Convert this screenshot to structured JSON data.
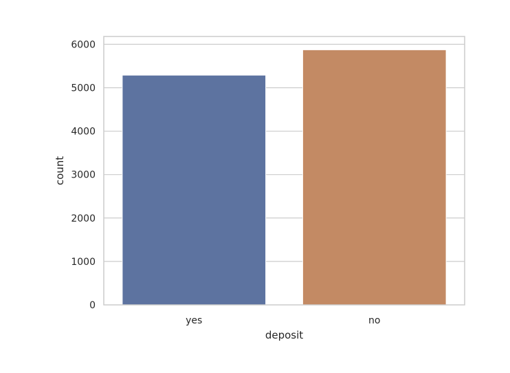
{
  "chart_data": {
    "type": "bar",
    "categories": [
      "yes",
      "no"
    ],
    "values": [
      5289,
      5873
    ],
    "title": "",
    "xlabel": "deposit",
    "ylabel": "count",
    "ylim": [
      0,
      6180
    ],
    "yticks": [
      0,
      1000,
      2000,
      3000,
      4000,
      5000,
      6000
    ],
    "grid": "y-axis only",
    "colors": [
      "#5d73a0",
      "#c38a64"
    ],
    "background": "#ffffff",
    "frame_color": "#cccccc",
    "grid_color": "#cccccc"
  }
}
